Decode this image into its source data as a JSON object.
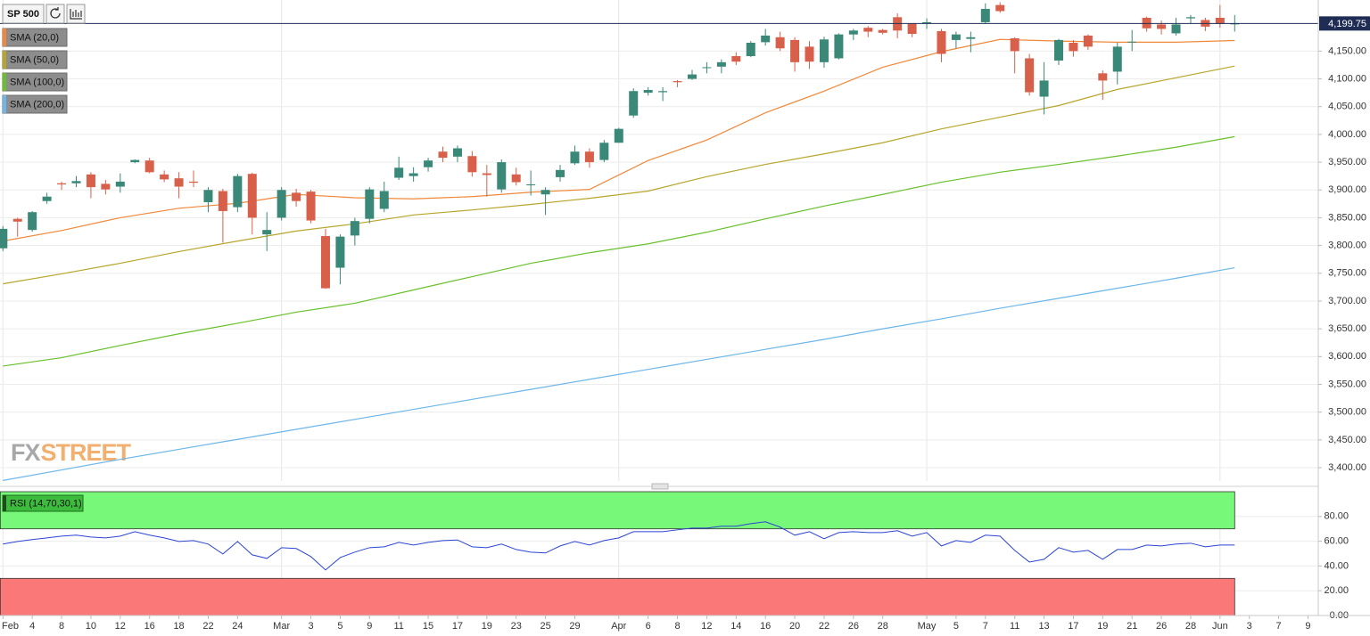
{
  "chart_data": [
    {
      "type": "candlestick",
      "title": "SP 500",
      "x": [
        0,
        1,
        2,
        3,
        4,
        5,
        6,
        7,
        8,
        9,
        10,
        11,
        12,
        13,
        14,
        15,
        16,
        17,
        18,
        19,
        20,
        21,
        22,
        23,
        24,
        25,
        26,
        27,
        28,
        29,
        30,
        31,
        32,
        33,
        34,
        35,
        36,
        37,
        38,
        39,
        40,
        41,
        42,
        43,
        44,
        45,
        46,
        47,
        48,
        49,
        50,
        51,
        52,
        53,
        54,
        55,
        56,
        57,
        58,
        59,
        60,
        61,
        62,
        63,
        64,
        65,
        66,
        67,
        68,
        69,
        70,
        71,
        72,
        73,
        74,
        75,
        76,
        77,
        78,
        79,
        80,
        81,
        82,
        83,
        84
      ],
      "open": [
        3795,
        3848,
        3828,
        3880,
        3912,
        3912,
        3928,
        3911,
        3906,
        3950,
        3953,
        3928,
        3921,
        3915,
        3878,
        3898,
        3869,
        3929,
        3820,
        3850,
        3895,
        3897,
        3817,
        3760,
        3818,
        3848,
        3866,
        3922,
        3925,
        3941,
        3969,
        3960,
        3961,
        3930,
        3901,
        3928,
        3910,
        3892,
        3923,
        3948,
        3969,
        3954,
        3985,
        4034,
        4075,
        4076,
        4096,
        4100,
        4120,
        4122,
        4141,
        4141,
        4166,
        4175,
        4170,
        4158,
        4130,
        4137,
        4180,
        4192,
        4188,
        4211,
        4200,
        4200,
        4186,
        4170,
        4172,
        4202,
        4233,
        4173,
        4137,
        4068,
        4133,
        4165,
        4178,
        4110,
        4113,
        4166,
        4210,
        4198,
        4182,
        4209,
        4206,
        4210,
        4199
      ],
      "high": [
        3835,
        3850,
        3862,
        3895,
        3915,
        3925,
        3932,
        3918,
        3930,
        3955,
        3958,
        3935,
        3932,
        3935,
        3905,
        3902,
        3929,
        3931,
        3860,
        3905,
        3902,
        3900,
        3830,
        3820,
        3850,
        3905,
        3915,
        3960,
        3941,
        3958,
        3978,
        3980,
        3970,
        3945,
        3955,
        3940,
        3935,
        3905,
        3945,
        3980,
        3975,
        3990,
        4012,
        4083,
        4085,
        4085,
        4098,
        4116,
        4130,
        4135,
        4148,
        4168,
        4190,
        4185,
        4175,
        4168,
        4176,
        4182,
        4190,
        4195,
        4190,
        4218,
        4200,
        4209,
        4190,
        4185,
        4185,
        4236,
        4238,
        4175,
        4145,
        4130,
        4172,
        4170,
        4180,
        4115,
        4165,
        4188,
        4212,
        4205,
        4210,
        4215,
        4210,
        4233,
        4215
      ],
      "low": [
        3790,
        3816,
        3825,
        3875,
        3900,
        3905,
        3885,
        3892,
        3895,
        3948,
        3930,
        3914,
        3885,
        3905,
        3860,
        3805,
        3860,
        3820,
        3790,
        3845,
        3870,
        3840,
        3722,
        3730,
        3800,
        3840,
        3860,
        3918,
        3915,
        3933,
        3950,
        3950,
        3924,
        3888,
        3895,
        3908,
        3890,
        3855,
        3915,
        3945,
        3940,
        3950,
        3985,
        4030,
        4070,
        4060,
        4085,
        4098,
        4110,
        4110,
        4125,
        4139,
        4160,
        4150,
        4113,
        4118,
        4120,
        4135,
        4170,
        4175,
        4180,
        4173,
        4175,
        4190,
        4130,
        4155,
        4148,
        4200,
        4219,
        4110,
        4070,
        4036,
        4125,
        4140,
        4152,
        4062,
        4090,
        4150,
        4185,
        4180,
        4178,
        4200,
        4186,
        4192,
        4185
      ],
      "close": [
        3830,
        3843,
        3860,
        3888,
        3910,
        3916,
        3905,
        3901,
        3915,
        3954,
        3932,
        3919,
        3906,
        3913,
        3900,
        3862,
        3925,
        3850,
        3828,
        3900,
        3880,
        3845,
        3723,
        3816,
        3844,
        3901,
        3898,
        3940,
        3930,
        3953,
        3958,
        3975,
        3932,
        3927,
        3950,
        3914,
        3910,
        3900,
        3936,
        3969,
        3950,
        3985,
        4010,
        4078,
        4080,
        4078,
        4094,
        4108,
        4121,
        4130,
        4131,
        4165,
        4178,
        4155,
        4130,
        4131,
        4171,
        4180,
        4187,
        4185,
        4183,
        4187,
        4181,
        4202,
        4145,
        4180,
        4175,
        4226,
        4222,
        4150,
        4076,
        4097,
        4170,
        4150,
        4158,
        4097,
        4158,
        4167,
        4191,
        4190,
        4198,
        4211,
        4194,
        4199,
        4199.75
      ],
      "up_color": "#3a8877",
      "down_color": "#d8604a",
      "overlays": [
        {
          "name": "SMA (20,0)",
          "color": "#f0883a",
          "x": [
            0,
            4,
            8,
            12,
            16,
            20,
            24,
            28,
            32,
            36,
            40,
            44,
            48,
            52,
            56,
            60,
            64,
            68,
            72,
            76,
            80,
            84
          ],
          "values": [
            3808,
            3827,
            3850,
            3867,
            3876,
            3892,
            3886,
            3884,
            3888,
            3896,
            3901,
            3953,
            3990,
            4039,
            4078,
            4121,
            4149,
            4171,
            4168,
            4166,
            4166,
            4169
          ]
        },
        {
          "name": "SMA (50,0)",
          "color": "#b8a52c",
          "x": [
            0,
            4,
            8,
            12,
            16,
            20,
            24,
            28,
            32,
            36,
            40,
            44,
            48,
            52,
            56,
            60,
            64,
            68,
            72,
            76,
            80,
            84
          ],
          "values": [
            3731,
            3749,
            3768,
            3789,
            3808,
            3826,
            3839,
            3855,
            3864,
            3874,
            3885,
            3898,
            3924,
            3946,
            3965,
            3985,
            4010,
            4031,
            4052,
            4081,
            4102,
            4123
          ]
        },
        {
          "name": "SMA (100,0)",
          "color": "#68c02c",
          "x": [
            0,
            4,
            8,
            12,
            16,
            20,
            24,
            28,
            32,
            36,
            40,
            44,
            48,
            52,
            56,
            60,
            64,
            68,
            72,
            76,
            80,
            84
          ],
          "values": [
            3583,
            3598,
            3620,
            3641,
            3660,
            3680,
            3696,
            3720,
            3744,
            3768,
            3787,
            3803,
            3824,
            3848,
            3871,
            3892,
            3914,
            3932,
            3946,
            3961,
            3977,
            3996
          ]
        },
        {
          "name": "SMA (200,0)",
          "color": "#6cb6ea",
          "x": [
            0,
            4,
            8,
            12,
            16,
            20,
            24,
            28,
            32,
            36,
            40,
            44,
            48,
            52,
            56,
            60,
            64,
            68,
            72,
            76,
            80,
            84
          ],
          "values": [
            3377,
            3396,
            3415,
            3433,
            3451,
            3469,
            3487,
            3505,
            3523,
            3541,
            3559,
            3577,
            3595,
            3613,
            3631,
            3650,
            3668,
            3687,
            3705,
            3723,
            3741,
            3760
          ]
        }
      ],
      "xlim": [
        -0.2,
        89.7
      ],
      "xticks": [
        {
          "value": 0,
          "label": "Feb"
        },
        {
          "value": 2,
          "label": "4"
        },
        {
          "value": 4,
          "label": "8"
        },
        {
          "value": 6,
          "label": "10"
        },
        {
          "value": 8,
          "label": "12"
        },
        {
          "value": 10,
          "label": "16"
        },
        {
          "value": 12,
          "label": "18"
        },
        {
          "value": 14,
          "label": "22"
        },
        {
          "value": 16,
          "label": "24"
        },
        {
          "value": 19,
          "label": "Mar"
        },
        {
          "value": 21,
          "label": "3"
        },
        {
          "value": 23,
          "label": "5"
        },
        {
          "value": 25,
          "label": "9"
        },
        {
          "value": 27,
          "label": "11"
        },
        {
          "value": 29,
          "label": "15"
        },
        {
          "value": 31,
          "label": "17"
        },
        {
          "value": 33,
          "label": "19"
        },
        {
          "value": 35,
          "label": "23"
        },
        {
          "value": 37,
          "label": "25"
        },
        {
          "value": 39,
          "label": "29"
        },
        {
          "value": 42,
          "label": "Apr"
        },
        {
          "value": 44,
          "label": "6"
        },
        {
          "value": 46,
          "label": "8"
        },
        {
          "value": 48,
          "label": "12"
        },
        {
          "value": 50,
          "label": "14"
        },
        {
          "value": 52,
          "label": "16"
        },
        {
          "value": 54,
          "label": "20"
        },
        {
          "value": 56,
          "label": "22"
        },
        {
          "value": 58,
          "label": "26"
        },
        {
          "value": 60,
          "label": "28"
        },
        {
          "value": 63,
          "label": "May"
        },
        {
          "value": 65,
          "label": "5"
        },
        {
          "value": 67,
          "label": "7"
        },
        {
          "value": 69,
          "label": "11"
        },
        {
          "value": 71,
          "label": "13"
        },
        {
          "value": 73,
          "label": "17"
        },
        {
          "value": 75,
          "label": "19"
        },
        {
          "value": 77,
          "label": "21"
        },
        {
          "value": 79,
          "label": "26"
        },
        {
          "value": 81,
          "label": "28"
        },
        {
          "value": 83,
          "label": "Jun"
        },
        {
          "value": 85,
          "label": "3"
        },
        {
          "value": 87,
          "label": "7"
        },
        {
          "value": 89,
          "label": "9"
        }
      ],
      "ylim": [
        3376,
        4242
      ],
      "yticks": [
        {
          "value": 3400,
          "label": "3,400.00"
        },
        {
          "value": 3450,
          "label": "3,450.00"
        },
        {
          "value": 3500,
          "label": "3,500.00"
        },
        {
          "value": 3550,
          "label": "3,550.00"
        },
        {
          "value": 3600,
          "label": "3,600.00"
        },
        {
          "value": 3650,
          "label": "3,650.00"
        },
        {
          "value": 3700,
          "label": "3,700.00"
        },
        {
          "value": 3750,
          "label": "3,750.00"
        },
        {
          "value": 3800,
          "label": "3,800.00"
        },
        {
          "value": 3850,
          "label": "3,850.00"
        },
        {
          "value": 3900,
          "label": "3,900.00"
        },
        {
          "value": 3950,
          "label": "3,950.00"
        },
        {
          "value": 4000,
          "label": "4,000.00"
        },
        {
          "value": 4050,
          "label": "4,050.00"
        },
        {
          "value": 4100,
          "label": "4,100.00"
        },
        {
          "value": 4150,
          "label": "4,150.00"
        }
      ],
      "last_price": {
        "value": 4199.75,
        "label": "4,199.75"
      },
      "watermark": [
        "FX",
        "STREET"
      ],
      "grid": true
    },
    {
      "type": "line",
      "title": "RSI (14,70,30,1)",
      "x": [
        0,
        1,
        2,
        3,
        4,
        5,
        6,
        7,
        8,
        9,
        10,
        11,
        12,
        13,
        14,
        15,
        16,
        17,
        18,
        19,
        20,
        21,
        22,
        23,
        24,
        25,
        26,
        27,
        28,
        29,
        30,
        31,
        32,
        33,
        34,
        35,
        36,
        37,
        38,
        39,
        40,
        41,
        42,
        43,
        44,
        45,
        46,
        47,
        48,
        49,
        50,
        51,
        52,
        53,
        54,
        55,
        56,
        57,
        58,
        59,
        60,
        61,
        62,
        63,
        64,
        65,
        66,
        67,
        68,
        69,
        70,
        71,
        72,
        73,
        74,
        75,
        76,
        77,
        78,
        79,
        80,
        81,
        82,
        83,
        84
      ],
      "series": [
        {
          "color": "#2b45d4",
          "values": [
            57.7,
            59.8,
            61.3,
            62.7,
            64.1,
            64.9,
            63.4,
            62.7,
            64.1,
            67.7,
            64.9,
            62.7,
            59.8,
            60.5,
            57.7,
            49.7,
            59.8,
            49.0,
            46.1,
            54.8,
            54.1,
            47.6,
            36.8,
            46.8,
            51.2,
            54.8,
            55.5,
            59.1,
            56.9,
            59.1,
            60.5,
            61.0,
            55.5,
            54.8,
            57.7,
            53.3,
            51.2,
            50.5,
            56.2,
            59.8,
            56.9,
            60.5,
            62.7,
            67.7,
            67.7,
            67.7,
            69.2,
            70.6,
            70.6,
            72.1,
            72.1,
            74.2,
            75.7,
            71.4,
            64.9,
            67.7,
            62.0,
            67.0,
            67.7,
            67.0,
            67.0,
            68.5,
            64.1,
            67.0,
            56.2,
            60.5,
            59.1,
            64.9,
            64.1,
            52.6,
            43.2,
            45.4,
            54.8,
            51.2,
            52.6,
            45.4,
            53.3,
            53.3,
            56.9,
            56.2,
            57.7,
            58.4,
            55.5,
            56.9,
            56.9
          ]
        }
      ],
      "bands": [
        {
          "from": 70,
          "to": 100,
          "color": "#78f878"
        },
        {
          "from": 0,
          "to": 30,
          "color": "#fa7878"
        }
      ],
      "ylim": [
        0,
        100
      ],
      "yticks": [
        {
          "value": 0,
          "label": "0.00"
        },
        {
          "value": 20,
          "label": "20.00"
        },
        {
          "value": 40,
          "label": "40.00"
        },
        {
          "value": 60,
          "label": "60.00"
        },
        {
          "value": 80,
          "label": "80.00"
        }
      ]
    }
  ]
}
